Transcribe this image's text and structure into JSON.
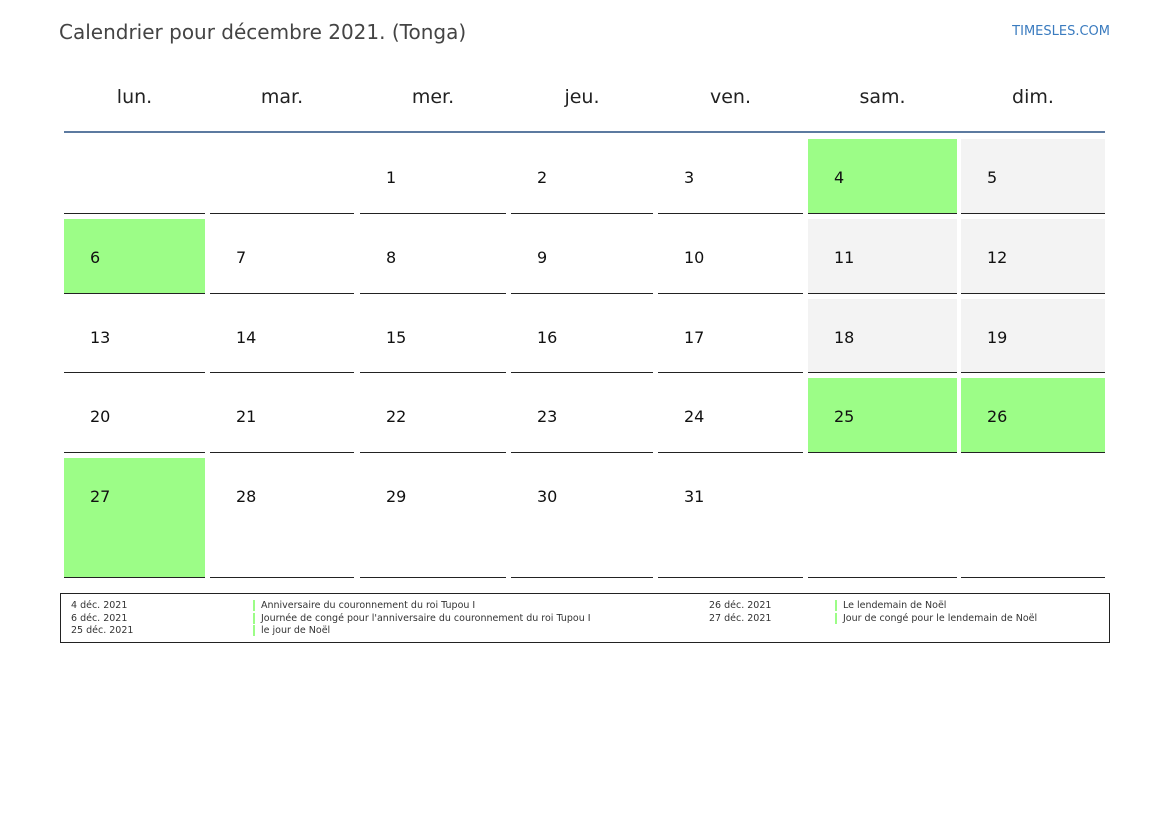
{
  "header": {
    "title": "Calendrier pour décembre 2021. (Tonga)",
    "brand": "TIMESLES.COM"
  },
  "colors": {
    "holiday": "#9cfd87",
    "weekend": "#f3f3f3",
    "rule": "#5c7aa0",
    "brand": "#3a7bbf"
  },
  "weekdays": [
    "lun.",
    "mar.",
    "mer.",
    "jeu.",
    "ven.",
    "sam.",
    "dim."
  ],
  "weeks": [
    [
      {
        "day": "",
        "type": "blank"
      },
      {
        "day": "",
        "type": "blank"
      },
      {
        "day": "1",
        "type": "normal"
      },
      {
        "day": "2",
        "type": "normal"
      },
      {
        "day": "3",
        "type": "normal"
      },
      {
        "day": "4",
        "type": "holiday"
      },
      {
        "day": "5",
        "type": "weekend"
      }
    ],
    [
      {
        "day": "6",
        "type": "holiday"
      },
      {
        "day": "7",
        "type": "normal"
      },
      {
        "day": "8",
        "type": "normal"
      },
      {
        "day": "9",
        "type": "normal"
      },
      {
        "day": "10",
        "type": "normal"
      },
      {
        "day": "11",
        "type": "weekend"
      },
      {
        "day": "12",
        "type": "weekend"
      }
    ],
    [
      {
        "day": "13",
        "type": "normal"
      },
      {
        "day": "14",
        "type": "normal"
      },
      {
        "day": "15",
        "type": "normal"
      },
      {
        "day": "16",
        "type": "normal"
      },
      {
        "day": "17",
        "type": "normal"
      },
      {
        "day": "18",
        "type": "weekend"
      },
      {
        "day": "19",
        "type": "weekend"
      }
    ],
    [
      {
        "day": "20",
        "type": "normal"
      },
      {
        "day": "21",
        "type": "normal"
      },
      {
        "day": "22",
        "type": "normal"
      },
      {
        "day": "23",
        "type": "normal"
      },
      {
        "day": "24",
        "type": "normal"
      },
      {
        "day": "25",
        "type": "holiday"
      },
      {
        "day": "26",
        "type": "holiday"
      }
    ],
    [
      {
        "day": "27",
        "type": "holiday"
      },
      {
        "day": "28",
        "type": "normal"
      },
      {
        "day": "29",
        "type": "normal"
      },
      {
        "day": "30",
        "type": "normal"
      },
      {
        "day": "31",
        "type": "normal"
      },
      {
        "day": "",
        "type": "blank"
      },
      {
        "day": "",
        "type": "blank"
      }
    ]
  ],
  "legend": {
    "left": [
      {
        "date": "4 déc. 2021",
        "name": "Anniversaire du couronnement du roi Tupou I"
      },
      {
        "date": "6 déc. 2021",
        "name": "Journée de congé pour l'anniversaire du couronnement du roi Tupou I"
      },
      {
        "date": "25 déc. 2021",
        "name": "le jour de Noël"
      }
    ],
    "right": [
      {
        "date": "26 déc. 2021",
        "name": "Le lendemain de Noël"
      },
      {
        "date": "27 déc. 2021",
        "name": "Jour de congé pour le lendemain de Noël"
      }
    ]
  }
}
